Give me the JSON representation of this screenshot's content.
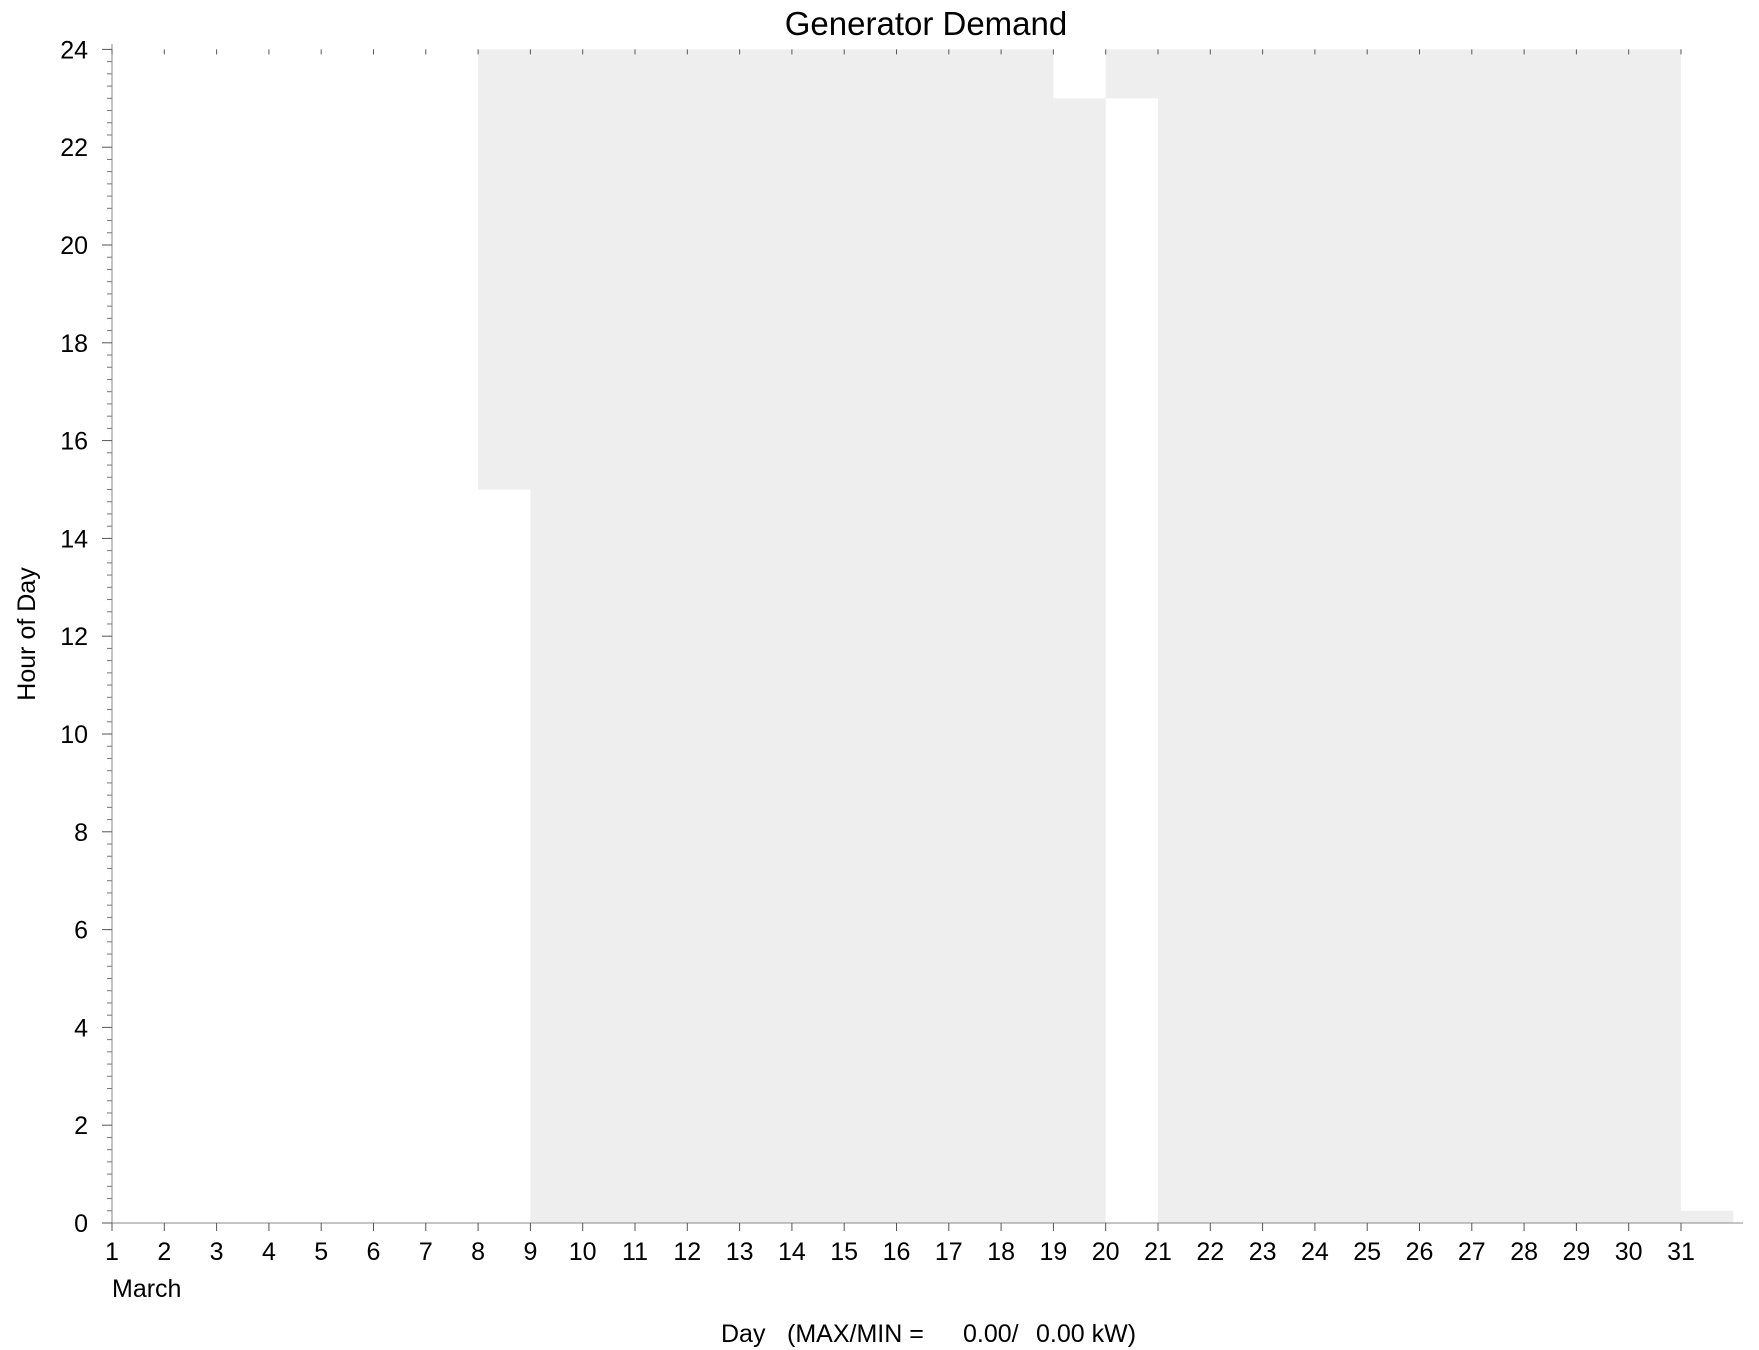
{
  "chart_data": {
    "type": "heatmap",
    "title": "Generator Demand",
    "xlabel": "Day",
    "xlabel_extra": "(MAX/MIN =",
    "max_value": "0.00/",
    "min_value": "0.00 kW)",
    "month_label": "March",
    "ylabel": "Hour of Day",
    "x_ticks": [
      "1",
      "2",
      "3",
      "4",
      "5",
      "6",
      "7",
      "8",
      "9",
      "10",
      "11",
      "12",
      "13",
      "14",
      "15",
      "16",
      "17",
      "18",
      "19",
      "20",
      "21",
      "22",
      "23",
      "24",
      "25",
      "26",
      "27",
      "28",
      "29",
      "30",
      "31"
    ],
    "y_ticks": [
      "0",
      "2",
      "4",
      "6",
      "8",
      "10",
      "12",
      "14",
      "16",
      "18",
      "20",
      "22",
      "24"
    ],
    "xlim": [
      1,
      32
    ],
    "ylim": [
      0,
      24
    ],
    "fill_color": "#eeeeee",
    "cells": [
      {
        "day_start": 8,
        "day_end": 9,
        "hour_start": 15,
        "hour_end": 24
      },
      {
        "day_start": 9,
        "day_end": 19,
        "hour_start": 0,
        "hour_end": 24
      },
      {
        "day_start": 19,
        "day_end": 20,
        "hour_start": 0,
        "hour_end": 23
      },
      {
        "day_start": 20,
        "day_end": 21,
        "hour_start": 23,
        "hour_end": 24
      },
      {
        "day_start": 21,
        "day_end": 31,
        "hour_start": 0,
        "hour_end": 24
      },
      {
        "day_start": 31,
        "day_end": 32,
        "hour_start": 0,
        "hour_end": 0.25
      }
    ]
  }
}
